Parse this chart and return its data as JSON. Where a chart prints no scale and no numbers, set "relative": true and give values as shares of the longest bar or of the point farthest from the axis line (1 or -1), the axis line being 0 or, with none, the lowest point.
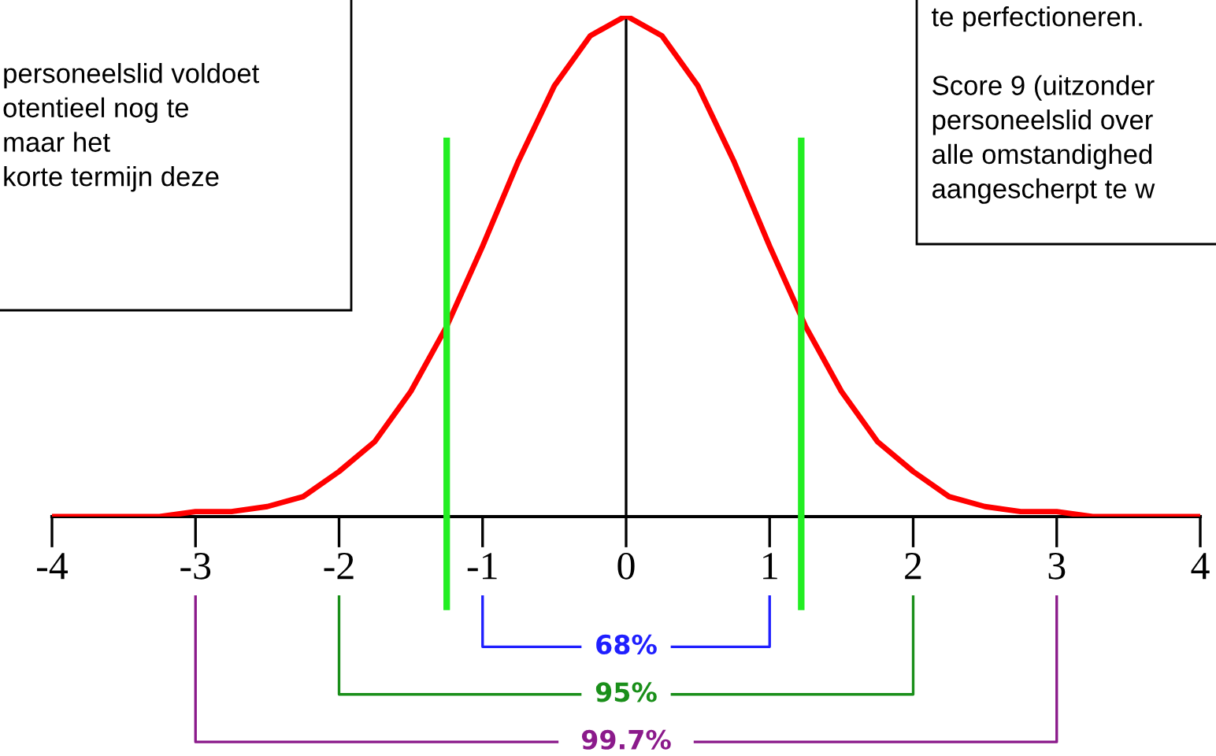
{
  "chart_data": {
    "type": "line",
    "relative": true,
    "x": [
      -4,
      -3.75,
      -3.5,
      -3.25,
      -3,
      -2.75,
      -2.5,
      -2.25,
      -2,
      -1.75,
      -1.5,
      -1.25,
      -1,
      -0.75,
      -0.5,
      -0.25,
      0,
      0.25,
      0.5,
      0.75,
      1,
      1.25,
      1.5,
      1.75,
      2,
      2.25,
      2.5,
      2.75,
      3,
      3.25,
      3.5,
      3.75,
      4
    ],
    "series": [
      {
        "color": "#ff0000",
        "values": [
          0,
          0,
          0,
          0,
          0.01,
          0.01,
          0.02,
          0.04,
          0.09,
          0.15,
          0.25,
          0.38,
          0.54,
          0.71,
          0.86,
          0.96,
          1,
          0.96,
          0.86,
          0.71,
          0.54,
          0.38,
          0.25,
          0.15,
          0.09,
          0.04,
          0.02,
          0.01,
          0.01,
          0,
          0,
          0,
          0
        ]
      }
    ],
    "xlim": [
      -4,
      4
    ],
    "xticks": [
      -4,
      -3,
      -2,
      -1,
      0,
      1,
      2,
      3,
      4
    ],
    "tick_labels": "x",
    "grid": false,
    "marker": "none",
    "line_style": "solid",
    "ref_lines": [
      {
        "axis": "x",
        "value": 0,
        "color": "#000000"
      },
      {
        "axis": "x",
        "value": -1.25,
        "color": "#22ee22"
      },
      {
        "axis": "x",
        "value": 1.22,
        "color": "#22ee22"
      }
    ],
    "annotations": [
      "personeelslid voldoet\notentieel nog te\nmaar het\nkorte termijn deze",
      "te perfectioneren.\n\nScore 9 (uitzonder\npersoneelslid over\nalle omstandighed\naangescherpt te w",
      "68%",
      "95%",
      "99.7%"
    ]
  }
}
